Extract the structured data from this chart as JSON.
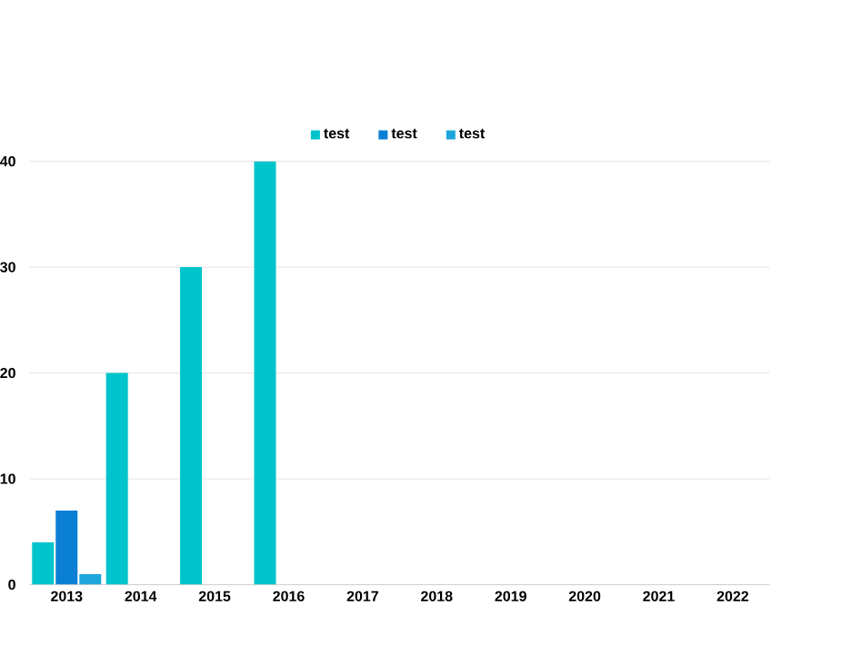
{
  "chart_data": {
    "type": "bar",
    "categories": [
      "2013",
      "2014",
      "2015",
      "2016",
      "2017",
      "2018",
      "2019",
      "2020",
      "2021",
      "2022"
    ],
    "series": [
      {
        "name": "test",
        "color": "#00c4cc",
        "values": [
          4,
          20,
          30,
          40,
          null,
          null,
          null,
          null,
          null,
          null
        ]
      },
      {
        "name": "test",
        "color": "#0a7fd4",
        "values": [
          7,
          null,
          null,
          null,
          null,
          null,
          null,
          null,
          null,
          null
        ]
      },
      {
        "name": "test",
        "color": "#1ea6dc",
        "values": [
          1,
          null,
          null,
          null,
          null,
          null,
          null,
          null,
          null,
          null
        ]
      }
    ],
    "ylim": [
      0,
      40
    ],
    "yticks": [
      0,
      10,
      20,
      30,
      40
    ],
    "grid": "y",
    "legend": "top"
  }
}
